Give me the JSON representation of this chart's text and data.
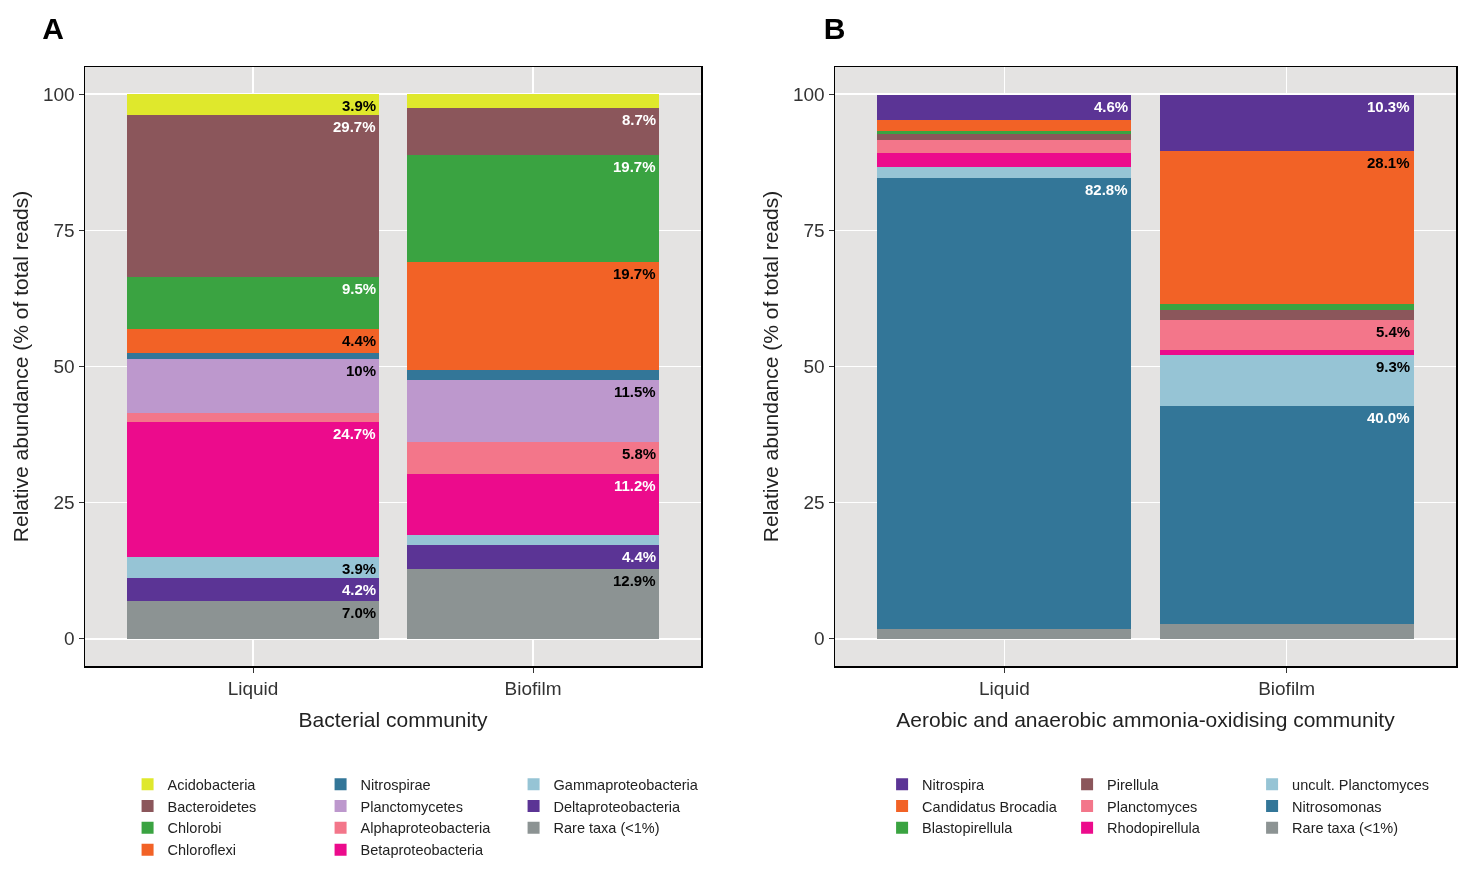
{
  "chart_data": [
    {
      "type": "bar",
      "title": "A",
      "xlabel": "Bacterial community",
      "ylabel": "Relative abundance (% of total reads)",
      "categories": [
        "Liquid",
        "Biofilm"
      ],
      "stacked": true,
      "ylim": [
        -5,
        105
      ],
      "yticks": [
        0,
        25,
        50,
        75,
        100
      ],
      "grid": true,
      "legend": "bottom",
      "series": [
        {
          "name": "Rare taxa (<1%)",
          "color": "#8c9393",
          "values": [
            7.0,
            12.9
          ],
          "value_labels": [
            "7.0%",
            "12.9%"
          ]
        },
        {
          "name": "Deltaproteobacteria",
          "color": "#5b3495",
          "values": [
            4.2,
            4.4
          ],
          "value_labels": [
            "4.2%",
            "4.4%"
          ]
        },
        {
          "name": "Gammaproteobacteria",
          "color": "#96c4d5",
          "values": [
            3.9,
            1.8
          ],
          "value_labels": [
            "3.9%",
            null
          ]
        },
        {
          "name": "Betaproteobacteria",
          "color": "#ec0b8c",
          "values": [
            24.7,
            11.2
          ],
          "value_labels": [
            "24.7%",
            "11.2%"
          ]
        },
        {
          "name": "Alphaproteobacteria",
          "color": "#f3768a",
          "values": [
            1.6,
            5.8
          ],
          "value_labels": [
            null,
            "5.8%"
          ]
        },
        {
          "name": "Planctomycetes",
          "color": "#bd98cd",
          "values": [
            10,
            11.5
          ],
          "value_labels": [
            "10%",
            "11.5%"
          ]
        },
        {
          "name": "Nitrospirae",
          "color": "#337698",
          "values": [
            1.1,
            1.8
          ],
          "value_labels": [
            null,
            null
          ]
        },
        {
          "name": "Chloroflexi",
          "color": "#f26226",
          "values": [
            4.4,
            19.7
          ],
          "value_labels": [
            "4.4%",
            "19.7%"
          ]
        },
        {
          "name": "Chlorobi",
          "color": "#3aa341",
          "values": [
            9.5,
            19.7
          ],
          "value_labels": [
            "9.5%",
            "19.7%"
          ]
        },
        {
          "name": "Bacteroidetes",
          "color": "#8b565b",
          "values": [
            29.7,
            8.7
          ],
          "value_labels": [
            "29.7%",
            "8.7%"
          ]
        },
        {
          "name": "Acidobacteria",
          "color": "#dfe82c",
          "values": [
            3.9,
            2.5
          ],
          "value_labels": [
            "3.9%",
            null
          ]
        }
      ]
    },
    {
      "type": "bar",
      "title": "B",
      "xlabel": "Aerobic and anaerobic ammonia-oxidising community",
      "ylabel": "Relative abundance (% of total reads)",
      "categories": [
        "Liquid",
        "Biofilm"
      ],
      "stacked": true,
      "ylim": [
        -5,
        105
      ],
      "yticks": [
        0,
        25,
        50,
        75,
        100
      ],
      "grid": true,
      "legend": "bottom",
      "series": [
        {
          "name": "Rare taxa (<1%)",
          "color": "#8c9393",
          "values": [
            1.8,
            2.8
          ],
          "value_labels": [
            null,
            null
          ]
        },
        {
          "name": "Nitrosomonas",
          "color": "#337698",
          "values": [
            82.8,
            40.0
          ],
          "value_labels": [
            "82.8%",
            "40.0%"
          ]
        },
        {
          "name": "uncult. Planctomyces",
          "color": "#96c4d5",
          "values": [
            2.0,
            9.3
          ],
          "value_labels": [
            null,
            "9.3%"
          ]
        },
        {
          "name": "Rhodopirellula",
          "color": "#ec0b8c",
          "values": [
            2.6,
            1.0
          ],
          "value_labels": [
            null,
            null
          ]
        },
        {
          "name": "Planctomyces",
          "color": "#f3768a",
          "values": [
            2.4,
            5.4
          ],
          "value_labels": [
            null,
            "5.4%"
          ]
        },
        {
          "name": "Pirellula",
          "color": "#8b565b",
          "values": [
            1.1,
            1.8
          ],
          "value_labels": [
            null,
            null
          ]
        },
        {
          "name": "Blastopirellula",
          "color": "#3aa341",
          "values": [
            0.6,
            1.2
          ],
          "value_labels": [
            null,
            null
          ]
        },
        {
          "name": "Candidatus Brocadia",
          "color": "#f26226",
          "values": [
            2.0,
            28.1
          ],
          "value_labels": [
            null,
            "28.1%"
          ]
        },
        {
          "name": "Nitrospira",
          "color": "#5b3495",
          "values": [
            4.6,
            10.3
          ],
          "value_labels": [
            "4.6%",
            "10.3%"
          ]
        }
      ]
    }
  ]
}
